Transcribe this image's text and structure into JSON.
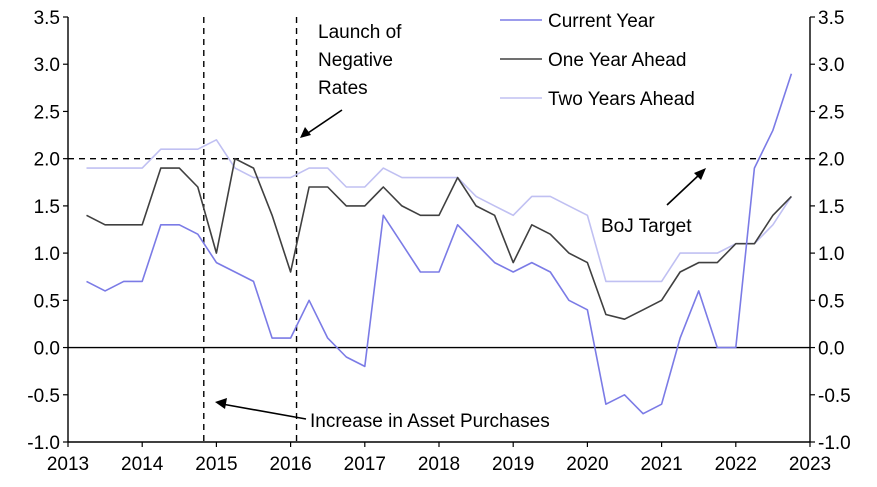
{
  "chart_data": {
    "type": "line",
    "xlim": [
      2013,
      2023
    ],
    "ylim": [
      -1.0,
      3.5
    ],
    "x_ticks": [
      "2013",
      "2014",
      "2015",
      "2016",
      "2017",
      "2018",
      "2019",
      "2020",
      "2021",
      "2022",
      "2023"
    ],
    "y_ticks": [
      "3.5",
      "3.0",
      "2.5",
      "2.0",
      "1.5",
      "1.0",
      "0.5",
      "0.0",
      "-0.5",
      "-1.0"
    ],
    "grid": false,
    "legend_placement": "top-center",
    "reference_lines": [
      {
        "type": "horizontal",
        "y": 2.0,
        "style": "dashed",
        "label": "BoJ Target"
      },
      {
        "type": "vertical",
        "x": 2014.83,
        "style": "dashed",
        "label": "Increase in Asset Purchases"
      },
      {
        "type": "vertical",
        "x": 2016.08,
        "style": "dashed",
        "label": "Launch of Negative Rates"
      }
    ],
    "annotations": {
      "negative_rates_line1": "Launch of",
      "negative_rates_line2": "Negative",
      "negative_rates_line3": "Rates",
      "boj_target": "BoJ Target",
      "asset_purchases": "Increase in Asset Purchases"
    },
    "series": [
      {
        "name": "Current Year",
        "color": "#7b7be6",
        "x": [
          2013.25,
          2013.5,
          2013.75,
          2014.0,
          2014.25,
          2014.5,
          2014.75,
          2015.0,
          2015.25,
          2015.5,
          2015.75,
          2016.0,
          2016.25,
          2016.5,
          2016.75,
          2017.0,
          2017.25,
          2017.5,
          2017.75,
          2018.0,
          2018.25,
          2018.5,
          2018.75,
          2019.0,
          2019.25,
          2019.5,
          2019.75,
          2020.0,
          2020.25,
          2020.5,
          2020.75,
          2021.0,
          2021.25,
          2021.5,
          2021.75,
          2022.0,
          2022.25,
          2022.5,
          2022.75
        ],
        "y": [
          0.7,
          0.6,
          0.7,
          0.7,
          1.3,
          1.3,
          1.2,
          0.9,
          0.8,
          0.7,
          0.1,
          0.1,
          0.5,
          0.1,
          -0.1,
          -0.2,
          1.4,
          1.1,
          0.8,
          0.8,
          1.3,
          1.1,
          0.9,
          0.8,
          0.9,
          0.8,
          0.5,
          0.4,
          -0.6,
          -0.5,
          -0.7,
          -0.6,
          0.1,
          0.6,
          0.0,
          0.0,
          1.9,
          2.3,
          2.9
        ]
      },
      {
        "name": "One Year Ahead",
        "color": "#404040",
        "x": [
          2013.25,
          2013.5,
          2013.75,
          2014.0,
          2014.25,
          2014.5,
          2014.75,
          2015.0,
          2015.25,
          2015.5,
          2015.75,
          2016.0,
          2016.25,
          2016.5,
          2016.75,
          2017.0,
          2017.25,
          2017.5,
          2017.75,
          2018.0,
          2018.25,
          2018.5,
          2018.75,
          2019.0,
          2019.25,
          2019.5,
          2019.75,
          2020.0,
          2020.25,
          2020.5,
          2020.75,
          2021.0,
          2021.25,
          2021.5,
          2021.75,
          2022.0,
          2022.25,
          2022.5,
          2022.75
        ],
        "y": [
          1.4,
          1.3,
          1.3,
          1.3,
          1.9,
          1.9,
          1.7,
          1.0,
          2.0,
          1.9,
          1.4,
          0.8,
          1.7,
          1.7,
          1.5,
          1.5,
          1.7,
          1.5,
          1.4,
          1.4,
          1.8,
          1.5,
          1.4,
          0.9,
          1.3,
          1.2,
          1.0,
          0.9,
          0.35,
          0.3,
          0.4,
          0.5,
          0.8,
          0.9,
          0.9,
          1.1,
          1.1,
          1.4,
          1.6
        ]
      },
      {
        "name": "Two Years Ahead",
        "color": "#c0c0f2",
        "x": [
          2013.25,
          2013.5,
          2013.75,
          2014.0,
          2014.25,
          2014.5,
          2014.75,
          2015.0,
          2015.25,
          2015.5,
          2015.75,
          2016.0,
          2016.25,
          2016.5,
          2016.75,
          2017.0,
          2017.25,
          2017.5,
          2017.75,
          2018.0,
          2018.25,
          2018.5,
          2018.75,
          2019.0,
          2019.25,
          2019.5,
          2019.75,
          2020.0,
          2020.25,
          2020.5,
          2020.75,
          2021.0,
          2021.25,
          2021.5,
          2021.75,
          2022.0,
          2022.25,
          2022.5,
          2022.75
        ],
        "y": [
          1.9,
          1.9,
          1.9,
          1.9,
          2.1,
          2.1,
          2.1,
          2.2,
          1.9,
          1.8,
          1.8,
          1.8,
          1.9,
          1.9,
          1.7,
          1.7,
          1.9,
          1.8,
          1.8,
          1.8,
          1.8,
          1.6,
          1.5,
          1.4,
          1.6,
          1.6,
          1.5,
          1.4,
          0.7,
          0.7,
          0.7,
          0.7,
          1.0,
          1.0,
          1.0,
          1.1,
          1.1,
          1.3,
          1.6
        ]
      }
    ]
  }
}
